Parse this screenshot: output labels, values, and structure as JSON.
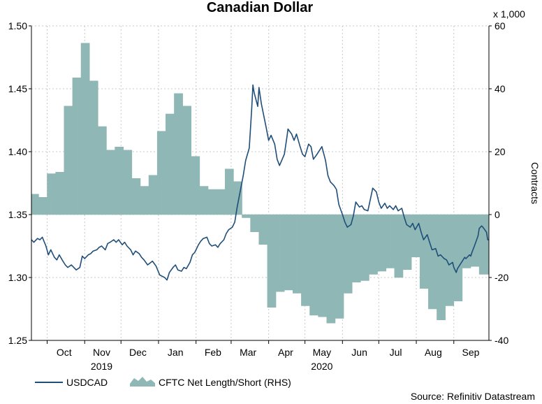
{
  "chart_data": {
    "type": "line",
    "title": "Canadian Dollar",
    "right_axis_multiplier": "x 1,000",
    "right_axis_label": "Contracts",
    "source": "Source: Refinitiv Datastream",
    "left_axis": {
      "min": 1.25,
      "max": 1.5,
      "ticks": [
        "1.25",
        "1.30",
        "1.35",
        "1.40",
        "1.45",
        "1.50"
      ]
    },
    "right_axis": {
      "min": -40,
      "max": 60,
      "ticks": [
        "-40",
        "-20",
        "0",
        "20",
        "40",
        "60"
      ]
    },
    "x_range": [
      "2019-09-18",
      "2020-09-30"
    ],
    "months": [
      {
        "label": "Oct",
        "date": "2019-10-15"
      },
      {
        "label": "Nov",
        "date": "2019-11-15"
      },
      {
        "label": "Dec",
        "date": "2019-12-15"
      },
      {
        "label": "Jan",
        "date": "2020-01-15"
      },
      {
        "label": "Feb",
        "date": "2020-02-15"
      },
      {
        "label": "Mar",
        "date": "2020-03-15"
      },
      {
        "label": "Apr",
        "date": "2020-04-15"
      },
      {
        "label": "May",
        "date": "2020-05-15"
      },
      {
        "label": "Jun",
        "date": "2020-06-15"
      },
      {
        "label": "Jul",
        "date": "2020-07-15"
      },
      {
        "label": "Aug",
        "date": "2020-08-15"
      },
      {
        "label": "Sep",
        "date": "2020-09-15"
      }
    ],
    "years": [
      {
        "label": "2019",
        "date": "2019-11-15"
      },
      {
        "label": "2020",
        "date": "2020-05-15"
      }
    ],
    "grid": true,
    "legend_position": "bottom-left",
    "series": [
      {
        "name": "USDCAD",
        "axis": "left",
        "kind": "line",
        "color": "#1f4e79",
        "points": [
          [
            "2019-09-18",
            1.33
          ],
          [
            "2019-09-20",
            1.328
          ],
          [
            "2019-09-23",
            1.331
          ],
          [
            "2019-09-25",
            1.33
          ],
          [
            "2019-09-27",
            1.332
          ],
          [
            "2019-09-30",
            1.325
          ],
          [
            "2019-10-02",
            1.318
          ],
          [
            "2019-10-04",
            1.322
          ],
          [
            "2019-10-07",
            1.316
          ],
          [
            "2019-10-09",
            1.314
          ],
          [
            "2019-10-11",
            1.318
          ],
          [
            "2019-10-14",
            1.313
          ],
          [
            "2019-10-16",
            1.31
          ],
          [
            "2019-10-18",
            1.308
          ],
          [
            "2019-10-21",
            1.31
          ],
          [
            "2019-10-23",
            1.308
          ],
          [
            "2019-10-25",
            1.306
          ],
          [
            "2019-10-28",
            1.308
          ],
          [
            "2019-10-30",
            1.317
          ],
          [
            "2019-11-01",
            1.315
          ],
          [
            "2019-11-04",
            1.318
          ],
          [
            "2019-11-06",
            1.319
          ],
          [
            "2019-11-08",
            1.321
          ],
          [
            "2019-11-11",
            1.322
          ],
          [
            "2019-11-13",
            1.324
          ],
          [
            "2019-11-15",
            1.325
          ],
          [
            "2019-11-18",
            1.322
          ],
          [
            "2019-11-20",
            1.327
          ],
          [
            "2019-11-22",
            1.328
          ],
          [
            "2019-11-25",
            1.33
          ],
          [
            "2019-11-27",
            1.328
          ],
          [
            "2019-11-29",
            1.33
          ],
          [
            "2019-12-02",
            1.326
          ],
          [
            "2019-12-04",
            1.328
          ],
          [
            "2019-12-06",
            1.325
          ],
          [
            "2019-12-09",
            1.322
          ],
          [
            "2019-12-11",
            1.318
          ],
          [
            "2019-12-13",
            1.321
          ],
          [
            "2019-12-16",
            1.319
          ],
          [
            "2019-12-18",
            1.316
          ],
          [
            "2019-12-20",
            1.314
          ],
          [
            "2019-12-23",
            1.31
          ],
          [
            "2019-12-27",
            1.313
          ],
          [
            "2019-12-30",
            1.309
          ],
          [
            "2020-01-02",
            1.302
          ],
          [
            "2020-01-06",
            1.3
          ],
          [
            "2020-01-08",
            1.298
          ],
          [
            "2020-01-10",
            1.304
          ],
          [
            "2020-01-13",
            1.308
          ],
          [
            "2020-01-15",
            1.31
          ],
          [
            "2020-01-17",
            1.306
          ],
          [
            "2020-01-20",
            1.305
          ],
          [
            "2020-01-22",
            1.308
          ],
          [
            "2020-01-24",
            1.307
          ],
          [
            "2020-01-27",
            1.312
          ],
          [
            "2020-01-29",
            1.318
          ],
          [
            "2020-01-31",
            1.32
          ],
          [
            "2020-02-03",
            1.326
          ],
          [
            "2020-02-05",
            1.329
          ],
          [
            "2020-02-07",
            1.331
          ],
          [
            "2020-02-10",
            1.332
          ],
          [
            "2020-02-12",
            1.327
          ],
          [
            "2020-02-14",
            1.325
          ],
          [
            "2020-02-17",
            1.326
          ],
          [
            "2020-02-19",
            1.324
          ],
          [
            "2020-02-21",
            1.327
          ],
          [
            "2020-02-24",
            1.33
          ],
          [
            "2020-02-26",
            1.335
          ],
          [
            "2020-02-28",
            1.338
          ],
          [
            "2020-03-02",
            1.34
          ],
          [
            "2020-03-04",
            1.344
          ],
          [
            "2020-03-06",
            1.356
          ],
          [
            "2020-03-09",
            1.371
          ],
          [
            "2020-03-11",
            1.381
          ],
          [
            "2020-03-13",
            1.393
          ],
          [
            "2020-03-16",
            1.403
          ],
          [
            "2020-03-18",
            1.434
          ],
          [
            "2020-03-19",
            1.453
          ],
          [
            "2020-03-20",
            1.447
          ],
          [
            "2020-03-23",
            1.436
          ],
          [
            "2020-03-24",
            1.451
          ],
          [
            "2020-03-26",
            1.438
          ],
          [
            "2020-03-30",
            1.419
          ],
          [
            "2020-04-01",
            1.409
          ],
          [
            "2020-04-03",
            1.413
          ],
          [
            "2020-04-06",
            1.406
          ],
          [
            "2020-04-08",
            1.394
          ],
          [
            "2020-04-10",
            1.389
          ],
          [
            "2020-04-14",
            1.398
          ],
          [
            "2020-04-16",
            1.411
          ],
          [
            "2020-04-17",
            1.418
          ],
          [
            "2020-04-20",
            1.414
          ],
          [
            "2020-04-22",
            1.409
          ],
          [
            "2020-04-24",
            1.414
          ],
          [
            "2020-04-27",
            1.404
          ],
          [
            "2020-04-29",
            1.398
          ],
          [
            "2020-05-01",
            1.396
          ],
          [
            "2020-05-04",
            1.406
          ],
          [
            "2020-05-06",
            1.404
          ],
          [
            "2020-05-08",
            1.394
          ],
          [
            "2020-05-11",
            1.398
          ],
          [
            "2020-05-13",
            1.401
          ],
          [
            "2020-05-15",
            1.404
          ],
          [
            "2020-05-18",
            1.393
          ],
          [
            "2020-05-20",
            1.381
          ],
          [
            "2020-05-22",
            1.376
          ],
          [
            "2020-05-25",
            1.373
          ],
          [
            "2020-05-27",
            1.37
          ],
          [
            "2020-05-29",
            1.358
          ],
          [
            "2020-06-01",
            1.35
          ],
          [
            "2020-06-03",
            1.344
          ],
          [
            "2020-06-05",
            1.34
          ],
          [
            "2020-06-08",
            1.342
          ],
          [
            "2020-06-10",
            1.349
          ],
          [
            "2020-06-12",
            1.36
          ],
          [
            "2020-06-15",
            1.356
          ],
          [
            "2020-06-17",
            1.357
          ],
          [
            "2020-06-19",
            1.354
          ],
          [
            "2020-06-22",
            1.353
          ],
          [
            "2020-06-24",
            1.362
          ],
          [
            "2020-06-26",
            1.371
          ],
          [
            "2020-06-29",
            1.368
          ],
          [
            "2020-07-01",
            1.36
          ],
          [
            "2020-07-03",
            1.355
          ],
          [
            "2020-07-06",
            1.359
          ],
          [
            "2020-07-08",
            1.355
          ],
          [
            "2020-07-10",
            1.357
          ],
          [
            "2020-07-13",
            1.354
          ],
          [
            "2020-07-15",
            1.357
          ],
          [
            "2020-07-17",
            1.353
          ],
          [
            "2020-07-20",
            1.355
          ],
          [
            "2020-07-22",
            1.348
          ],
          [
            "2020-07-24",
            1.342
          ],
          [
            "2020-07-27",
            1.34
          ],
          [
            "2020-07-29",
            1.343
          ],
          [
            "2020-07-31",
            1.338
          ],
          [
            "2020-08-03",
            1.343
          ],
          [
            "2020-08-05",
            1.336
          ],
          [
            "2020-08-07",
            1.33
          ],
          [
            "2020-08-10",
            1.334
          ],
          [
            "2020-08-12",
            1.328
          ],
          [
            "2020-08-14",
            1.322
          ],
          [
            "2020-08-17",
            1.323
          ],
          [
            "2020-08-19",
            1.317
          ],
          [
            "2020-08-21",
            1.318
          ],
          [
            "2020-08-24",
            1.315
          ],
          [
            "2020-08-26",
            1.314
          ],
          [
            "2020-08-28",
            1.31
          ],
          [
            "2020-08-31",
            1.312
          ],
          [
            "2020-09-01",
            1.308
          ],
          [
            "2020-09-03",
            1.304
          ],
          [
            "2020-09-04",
            1.307
          ],
          [
            "2020-09-08",
            1.313
          ],
          [
            "2020-09-10",
            1.316
          ],
          [
            "2020-09-11",
            1.315
          ],
          [
            "2020-09-14",
            1.318
          ],
          [
            "2020-09-15",
            1.317
          ],
          [
            "2020-09-16",
            1.32
          ],
          [
            "2020-09-18",
            1.325
          ],
          [
            "2020-09-21",
            1.333
          ],
          [
            "2020-09-22",
            1.339
          ],
          [
            "2020-09-24",
            1.341
          ],
          [
            "2020-09-25",
            1.34
          ],
          [
            "2020-09-28",
            1.336
          ],
          [
            "2020-09-29",
            1.33
          ],
          [
            "2020-09-30",
            1.33
          ]
        ]
      },
      {
        "name": "CFTC Net Length/Short (RHS)",
        "axis": "right",
        "kind": "step-area",
        "color": "#8fb7b5",
        "points": [
          [
            "2019-09-17",
            6.5
          ],
          [
            "2019-09-24",
            5.5
          ],
          [
            "2019-10-01",
            13.0
          ],
          [
            "2019-10-08",
            13.5
          ],
          [
            "2019-10-15",
            34.5
          ],
          [
            "2019-10-22",
            43.5
          ],
          [
            "2019-10-29",
            54.5
          ],
          [
            "2019-11-05",
            42.5
          ],
          [
            "2019-11-12",
            28.0
          ],
          [
            "2019-11-19",
            20.5
          ],
          [
            "2019-11-26",
            21.5
          ],
          [
            "2019-12-03",
            20.5
          ],
          [
            "2019-12-10",
            11.5
          ],
          [
            "2019-12-17",
            9.0
          ],
          [
            "2019-12-24",
            12.5
          ],
          [
            "2019-12-31",
            26.5
          ],
          [
            "2020-01-07",
            32.0
          ],
          [
            "2020-01-14",
            38.5
          ],
          [
            "2020-01-21",
            34.5
          ],
          [
            "2020-01-28",
            18.5
          ],
          [
            "2020-02-04",
            9.0
          ],
          [
            "2020-02-11",
            8.0
          ],
          [
            "2020-02-18",
            8.0
          ],
          [
            "2020-02-25",
            14.5
          ],
          [
            "2020-03-03",
            10.5
          ],
          [
            "2020-03-10",
            -1.0
          ],
          [
            "2020-03-17",
            -5.5
          ],
          [
            "2020-03-24",
            -9.5
          ],
          [
            "2020-03-31",
            -29.5
          ],
          [
            "2020-04-07",
            -24.5
          ],
          [
            "2020-04-14",
            -24.0
          ],
          [
            "2020-04-21",
            -25.0
          ],
          [
            "2020-04-28",
            -29.0
          ],
          [
            "2020-05-05",
            -32.0
          ],
          [
            "2020-05-12",
            -32.5
          ],
          [
            "2020-05-19",
            -34.5
          ],
          [
            "2020-05-26",
            -33.0
          ],
          [
            "2020-06-02",
            -25.0
          ],
          [
            "2020-06-09",
            -21.5
          ],
          [
            "2020-06-16",
            -21.0
          ],
          [
            "2020-06-23",
            -19.0
          ],
          [
            "2020-06-30",
            -18.0
          ],
          [
            "2020-07-07",
            -17.0
          ],
          [
            "2020-07-14",
            -20.0
          ],
          [
            "2020-07-21",
            -17.5
          ],
          [
            "2020-07-28",
            -13.5
          ],
          [
            "2020-08-04",
            -23.5
          ],
          [
            "2020-08-11",
            -30.0
          ],
          [
            "2020-08-18",
            -33.5
          ],
          [
            "2020-08-25",
            -29.0
          ],
          [
            "2020-09-01",
            -27.5
          ],
          [
            "2020-09-08",
            -17.0
          ],
          [
            "2020-09-15",
            -16.5
          ],
          [
            "2020-09-22",
            -19.0
          ],
          [
            "2020-09-29",
            -19.0
          ]
        ],
        "end_date": "2020-10-02"
      }
    ]
  },
  "colors": {
    "line": "#1f4e79",
    "area": "#8fb7b5"
  },
  "icons": {
    "line_swatch": "line-swatch-icon",
    "area_swatch": "area-swatch-icon"
  }
}
